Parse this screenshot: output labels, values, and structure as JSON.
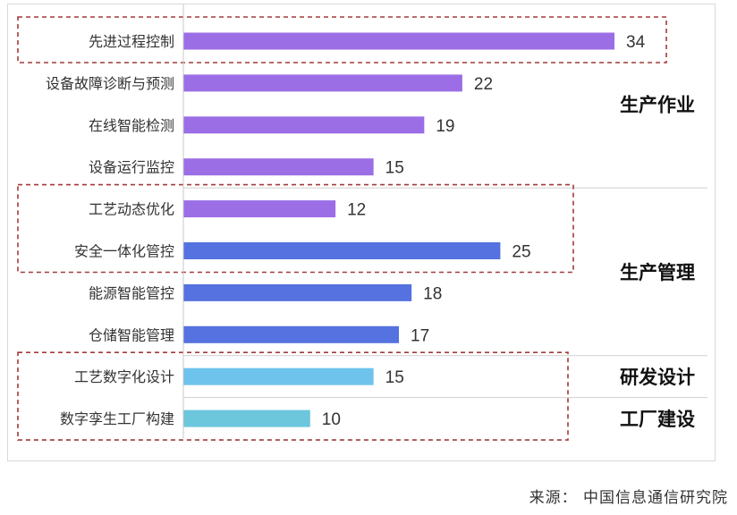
{
  "chart_data": {
    "type": "bar",
    "orientation": "horizontal",
    "categories": [
      "先进过程控制",
      "设备故障诊断与预测",
      "在线智能检测",
      "设备运行监控",
      "工艺动态优化",
      "安全一体化管控",
      "能源智能管控",
      "仓储智能管理",
      "工艺数字化设计",
      "数字孪生工厂构建"
    ],
    "values": [
      34,
      22,
      19,
      15,
      12,
      25,
      18,
      17,
      15,
      10
    ],
    "bar_colors": [
      "#9b6ee6",
      "#9b6ee6",
      "#9b6ee6",
      "#9b6ee6",
      "#9b6ee6",
      "#5572e0",
      "#5572e0",
      "#5572e0",
      "#6ec3ec",
      "#6cc6dc"
    ],
    "groups": [
      {
        "label": "生产作业",
        "categories": [
          "先进过程控制",
          "设备故障诊断与预测",
          "在线智能检测",
          "设备运行监控"
        ]
      },
      {
        "label": "生产管理",
        "categories": [
          "工艺动态优化",
          "安全一体化管控",
          "能源智能管控",
          "仓储智能管理"
        ]
      },
      {
        "label": "研发设计",
        "categories": [
          "工艺数字化设计"
        ]
      },
      {
        "label": "工厂建设",
        "categories": [
          "数字孪生工厂构建"
        ]
      }
    ],
    "highlighted": [
      [
        "先进过程控制"
      ],
      [
        "工艺动态优化",
        "安全一体化管控"
      ],
      [
        "工艺数字化设计",
        "数字孪生工厂构建"
      ]
    ],
    "highlight_color": "#a33a3a",
    "xlim": [
      0,
      34
    ],
    "grid": false,
    "legend": "none"
  },
  "source": "来源： 中国信息通信研究院"
}
